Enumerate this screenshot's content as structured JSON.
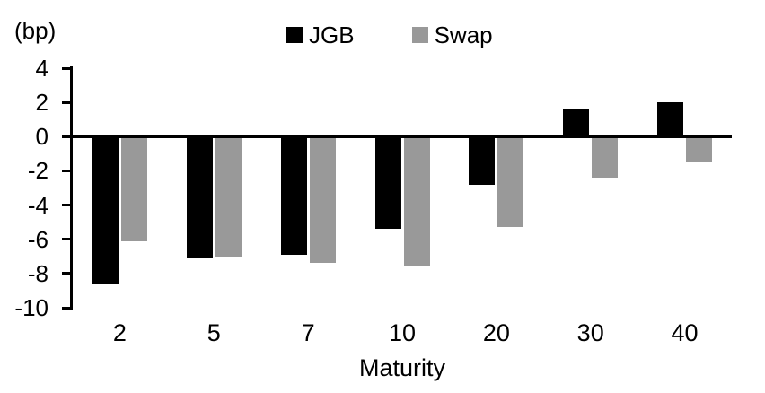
{
  "chart_data": {
    "type": "bar",
    "title": "",
    "unit_label": "(bp)",
    "xlabel": "Maturity",
    "ylabel": "(bp)",
    "categories": [
      "2",
      "5",
      "7",
      "10",
      "20",
      "30",
      "40"
    ],
    "series": [
      {
        "name": "JGB",
        "color": "#000000",
        "values": [
          -8.6,
          -7.1,
          -6.9,
          -5.4,
          -2.8,
          1.6,
          2.0
        ]
      },
      {
        "name": "Swap",
        "color": "#999999",
        "values": [
          -6.1,
          -7.0,
          -7.4,
          -7.6,
          -5.3,
          -2.4,
          -1.5
        ]
      }
    ],
    "yticks": [
      4,
      2,
      0,
      -2,
      -4,
      -6,
      -8,
      -10
    ],
    "ylim": [
      -10,
      4
    ],
    "grid": false,
    "legend_position": "top",
    "axis_color": "#000000",
    "background_color": "#ffffff"
  }
}
